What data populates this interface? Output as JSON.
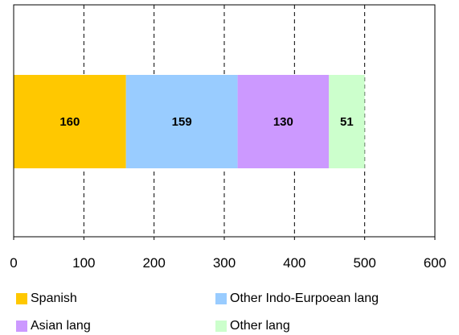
{
  "chart_data": {
    "type": "bar",
    "orientation": "horizontal",
    "stacked": true,
    "title": "",
    "xlabel": "",
    "ylabel": "",
    "xlim": [
      0,
      600
    ],
    "x_ticks": [
      "0",
      "100",
      "200",
      "300",
      "400",
      "500",
      "600"
    ],
    "grid": "vertical dashed",
    "legend_placement": "bottom",
    "series": [
      {
        "name": "Spanish",
        "values": [
          160
        ],
        "color": "#FFC800",
        "label": "160"
      },
      {
        "name": "Other Indo-Eurpoean lang",
        "values": [
          159
        ],
        "color": "#99CCFF",
        "label": "159"
      },
      {
        "name": "Asian lang",
        "values": [
          130
        ],
        "color": "#CC99FF",
        "label": "130"
      },
      {
        "name": "Other lang",
        "values": [
          51
        ],
        "color": "#CCFFCC",
        "label": "51"
      }
    ]
  }
}
